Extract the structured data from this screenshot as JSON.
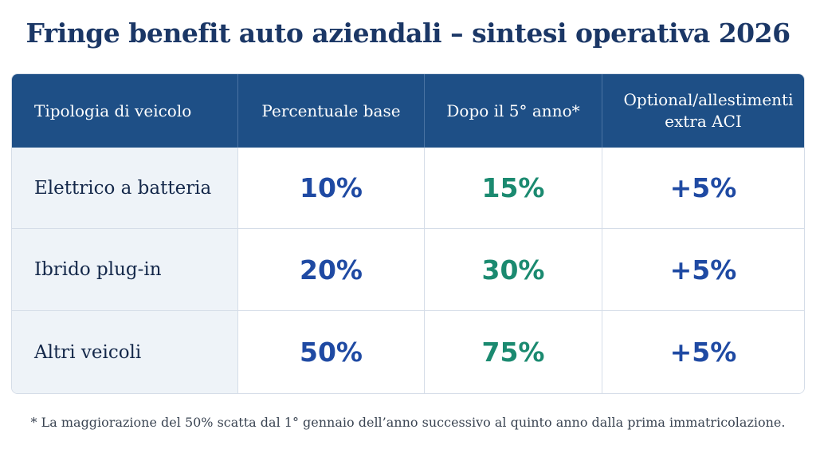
{
  "title": "Fringe benefit auto aziendali – sintesi operativa 2026",
  "table": {
    "headers": [
      "Tipologia di veicolo",
      "Percentuale base",
      "Dopo il 5° anno*",
      "Optional/allestimenti extra ACI"
    ],
    "rows": [
      {
        "label": "Elettrico a batteria",
        "base": "10%",
        "after5": "15%",
        "optional": "+5%"
      },
      {
        "label": "Ibrido plug-in",
        "base": "20%",
        "after5": "30%",
        "optional": "+5%"
      },
      {
        "label": "Altri veicoli",
        "base": "50%",
        "after5": "75%",
        "optional": "+5%"
      }
    ]
  },
  "footnote": "* La maggiorazione del 50% scatta dal 1° gennaio dell’anno successivo al quinto anno dalla prima immatricolazione.",
  "colors": {
    "header_bg": "#1e4f86",
    "title": "#1b3766",
    "value_blue": "#1f4aa3",
    "value_green": "#1b8a70",
    "label_bg": "#eef3f8"
  }
}
